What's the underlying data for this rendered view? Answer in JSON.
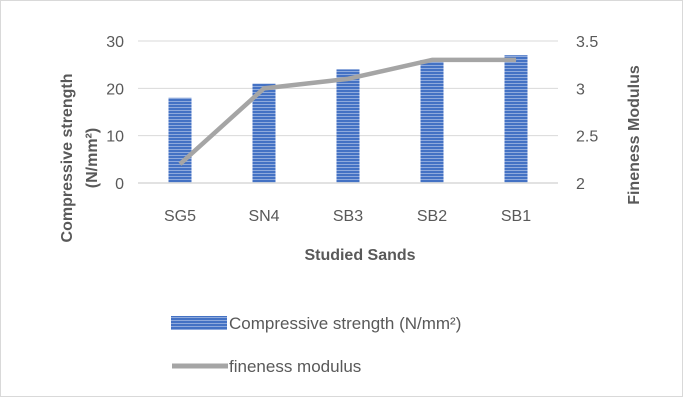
{
  "chart_data": {
    "type": "bar",
    "categories": [
      "SG5",
      "SN4",
      "SB3",
      "SB2",
      "SB1"
    ],
    "series": [
      {
        "name": "Compressive strength (N/mm²)",
        "kind": "bar",
        "axis": "left",
        "values": [
          18,
          21,
          24,
          26,
          27
        ],
        "color": "#4472c4"
      },
      {
        "name": "fineness modulus",
        "kind": "line",
        "axis": "right",
        "values": [
          2.2,
          3.0,
          3.1,
          3.3,
          3.3
        ],
        "color": "#a5a5a5"
      }
    ],
    "xlabel": "Studied Sands",
    "ylabel": [
      "Compressive strength",
      "(N/mm²)"
    ],
    "y2label": "Fineness Modulus",
    "ylim": [
      0,
      30
    ],
    "yticks": [
      "0",
      "10",
      "20",
      "30"
    ],
    "y2lim": [
      2,
      3.5
    ],
    "y2ticks": [
      "2",
      "2.5",
      "3",
      "3.5"
    ],
    "grid": true,
    "legend_position": "bottom"
  }
}
